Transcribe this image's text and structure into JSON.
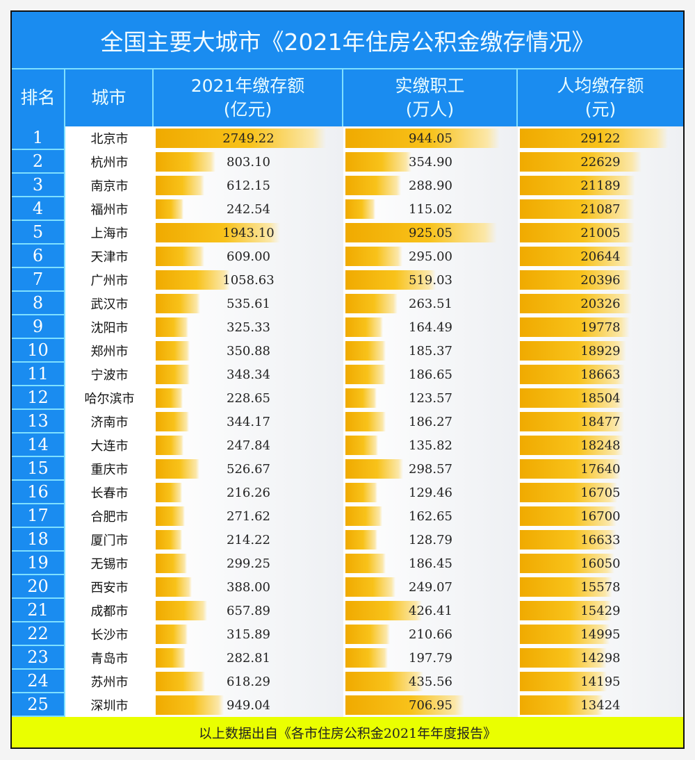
{
  "title": "全国主要大城市《2021年住房公积金缴存情况》",
  "headers": {
    "rank": "排名",
    "city": "城市",
    "c1": "2021年缴存额",
    "c1u": "(亿元)",
    "c2": "实缴职工",
    "c2u": "(万人)",
    "c3": "人均缴存额",
    "c3u": "(元)"
  },
  "footer": "以上数据出自《各市住房公积金2021年年度报告》",
  "chart_data": {
    "type": "table",
    "title": "全国主要大城市《2021年住房公积金缴存情况》",
    "columns": [
      "排名",
      "城市",
      "2021年缴存额(亿元)",
      "实缴职工(万人)",
      "人均缴存额(元)"
    ],
    "rows": [
      [
        "1",
        "北京市",
        "2749.22",
        "944.05",
        "29122"
      ],
      [
        "2",
        "杭州市",
        "803.10",
        "354.90",
        "22629"
      ],
      [
        "3",
        "南京市",
        "612.15",
        "288.90",
        "21189"
      ],
      [
        "4",
        "福州市",
        "242.54",
        "115.02",
        "21087"
      ],
      [
        "5",
        "上海市",
        "1943.10",
        "925.05",
        "21005"
      ],
      [
        "6",
        "天津市",
        "609.00",
        "295.00",
        "20644"
      ],
      [
        "7",
        "广州市",
        "1058.63",
        "519.03",
        "20396"
      ],
      [
        "8",
        "武汉市",
        "535.61",
        "263.51",
        "20326"
      ],
      [
        "9",
        "沈阳市",
        "325.33",
        "164.49",
        "19778"
      ],
      [
        "10",
        "郑州市",
        "350.88",
        "185.37",
        "18929"
      ],
      [
        "11",
        "宁波市",
        "348.34",
        "186.65",
        "18663"
      ],
      [
        "12",
        "哈尔滨市",
        "228.65",
        "123.57",
        "18504"
      ],
      [
        "13",
        "济南市",
        "344.17",
        "186.27",
        "18477"
      ],
      [
        "14",
        "大连市",
        "247.84",
        "135.82",
        "18248"
      ],
      [
        "15",
        "重庆市",
        "526.67",
        "298.57",
        "17640"
      ],
      [
        "16",
        "长春市",
        "216.26",
        "129.46",
        "16705"
      ],
      [
        "17",
        "合肥市",
        "271.62",
        "162.65",
        "16700"
      ],
      [
        "18",
        "厦门市",
        "214.22",
        "128.79",
        "16633"
      ],
      [
        "19",
        "无锡市",
        "299.25",
        "186.45",
        "16050"
      ],
      [
        "20",
        "西安市",
        "388.00",
        "249.07",
        "15578"
      ],
      [
        "21",
        "成都市",
        "657.89",
        "426.41",
        "15429"
      ],
      [
        "22",
        "长沙市",
        "315.89",
        "210.66",
        "14995"
      ],
      [
        "23",
        "青岛市",
        "282.81",
        "197.79",
        "14298"
      ],
      [
        "24",
        "苏州市",
        "618.29",
        "435.56",
        "14195"
      ],
      [
        "25",
        "深圳市",
        "949.04",
        "706.95",
        "13424"
      ]
    ]
  },
  "colors": {
    "blue": "#1a8cf0",
    "bar": "#f5b400",
    "footer": "#eaff00"
  }
}
